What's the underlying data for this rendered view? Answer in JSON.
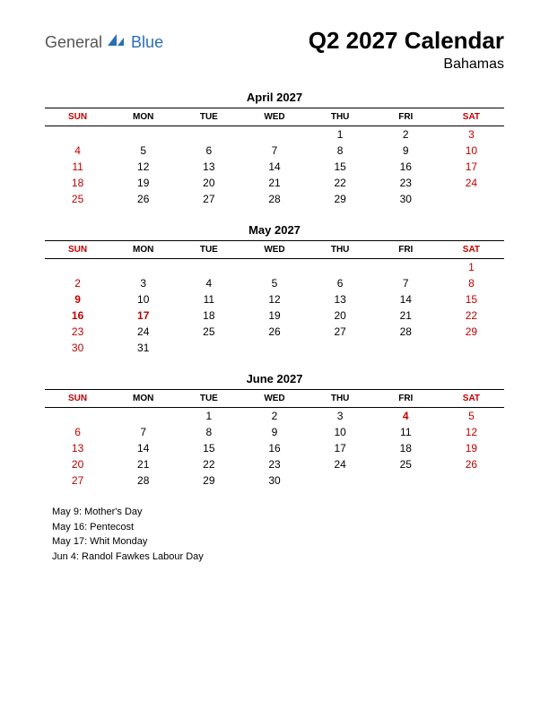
{
  "logo": {
    "text1": "General",
    "text2": "Blue",
    "icon_color": "#2a6fb5"
  },
  "title": "Q2 2027 Calendar",
  "subtitle": "Bahamas",
  "day_headers": [
    "SUN",
    "MON",
    "TUE",
    "WED",
    "THU",
    "FRI",
    "SAT"
  ],
  "header_red_cols": [
    0,
    6
  ],
  "months": [
    {
      "name": "April 2027",
      "weeks": [
        [
          null,
          null,
          null,
          null,
          {
            "n": 1
          },
          {
            "n": 2
          },
          {
            "n": 3,
            "red": true
          }
        ],
        [
          {
            "n": 4,
            "red": true
          },
          {
            "n": 5
          },
          {
            "n": 6
          },
          {
            "n": 7
          },
          {
            "n": 8
          },
          {
            "n": 9
          },
          {
            "n": 10,
            "red": true
          }
        ],
        [
          {
            "n": 11,
            "red": true
          },
          {
            "n": 12
          },
          {
            "n": 13
          },
          {
            "n": 14
          },
          {
            "n": 15
          },
          {
            "n": 16
          },
          {
            "n": 17,
            "red": true
          }
        ],
        [
          {
            "n": 18,
            "red": true
          },
          {
            "n": 19
          },
          {
            "n": 20
          },
          {
            "n": 21
          },
          {
            "n": 22
          },
          {
            "n": 23
          },
          {
            "n": 24,
            "red": true
          }
        ],
        [
          {
            "n": 25,
            "red": true
          },
          {
            "n": 26
          },
          {
            "n": 27
          },
          {
            "n": 28
          },
          {
            "n": 29
          },
          {
            "n": 30
          },
          null
        ]
      ]
    },
    {
      "name": "May 2027",
      "weeks": [
        [
          null,
          null,
          null,
          null,
          null,
          null,
          {
            "n": 1,
            "red": true
          }
        ],
        [
          {
            "n": 2,
            "red": true
          },
          {
            "n": 3
          },
          {
            "n": 4
          },
          {
            "n": 5
          },
          {
            "n": 6
          },
          {
            "n": 7
          },
          {
            "n": 8,
            "red": true
          }
        ],
        [
          {
            "n": 9,
            "red": true,
            "bold": true
          },
          {
            "n": 10
          },
          {
            "n": 11
          },
          {
            "n": 12
          },
          {
            "n": 13
          },
          {
            "n": 14
          },
          {
            "n": 15,
            "red": true
          }
        ],
        [
          {
            "n": 16,
            "red": true,
            "bold": true
          },
          {
            "n": 17,
            "red": true,
            "bold": true
          },
          {
            "n": 18
          },
          {
            "n": 19
          },
          {
            "n": 20
          },
          {
            "n": 21
          },
          {
            "n": 22,
            "red": true
          }
        ],
        [
          {
            "n": 23,
            "red": true
          },
          {
            "n": 24
          },
          {
            "n": 25
          },
          {
            "n": 26
          },
          {
            "n": 27
          },
          {
            "n": 28
          },
          {
            "n": 29,
            "red": true
          }
        ],
        [
          {
            "n": 30,
            "red": true
          },
          {
            "n": 31
          },
          null,
          null,
          null,
          null,
          null
        ]
      ]
    },
    {
      "name": "June 2027",
      "weeks": [
        [
          null,
          null,
          {
            "n": 1
          },
          {
            "n": 2
          },
          {
            "n": 3
          },
          {
            "n": 4,
            "red": true,
            "bold": true
          },
          {
            "n": 5,
            "red": true
          }
        ],
        [
          {
            "n": 6,
            "red": true
          },
          {
            "n": 7
          },
          {
            "n": 8
          },
          {
            "n": 9
          },
          {
            "n": 10
          },
          {
            "n": 11
          },
          {
            "n": 12,
            "red": true
          }
        ],
        [
          {
            "n": 13,
            "red": true
          },
          {
            "n": 14
          },
          {
            "n": 15
          },
          {
            "n": 16
          },
          {
            "n": 17
          },
          {
            "n": 18
          },
          {
            "n": 19,
            "red": true
          }
        ],
        [
          {
            "n": 20,
            "red": true
          },
          {
            "n": 21
          },
          {
            "n": 22
          },
          {
            "n": 23
          },
          {
            "n": 24
          },
          {
            "n": 25
          },
          {
            "n": 26,
            "red": true
          }
        ],
        [
          {
            "n": 27,
            "red": true
          },
          {
            "n": 28
          },
          {
            "n": 29
          },
          {
            "n": 30
          },
          null,
          null,
          null
        ]
      ]
    }
  ],
  "holidays": [
    "May 9: Mother's Day",
    "May 16: Pentecost",
    "May 17: Whit Monday",
    "Jun 4: Randol Fawkes Labour Day"
  ]
}
